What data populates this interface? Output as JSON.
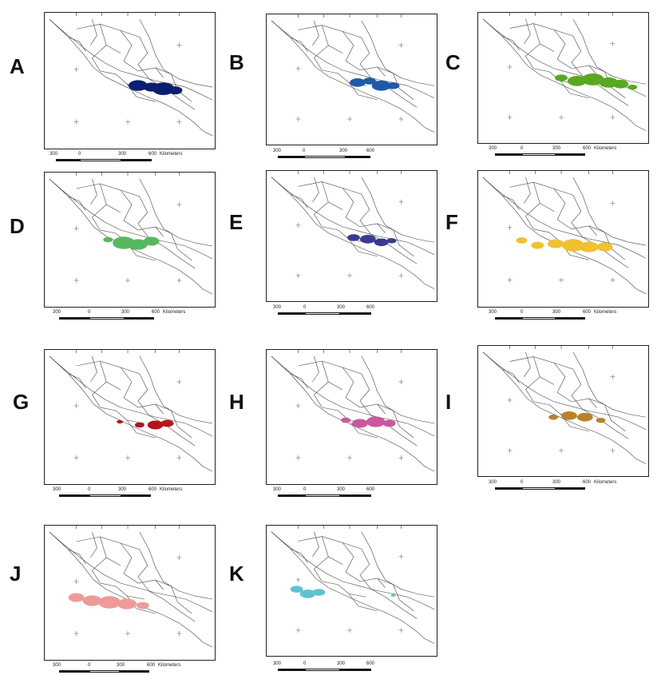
{
  "panels": [
    {
      "letter": "A",
      "color": "#0b1f6e",
      "scale": [
        "300",
        "0",
        "300",
        "600",
        "Kilometers"
      ]
    },
    {
      "letter": "B",
      "color": "#1f5aa8",
      "scale": [
        "300",
        "0",
        "300",
        "600"
      ]
    },
    {
      "letter": "C",
      "color": "#5aa820",
      "scale": [
        "300",
        "0",
        "300",
        "600",
        "Kilometers"
      ]
    },
    {
      "letter": "D",
      "color": "#57b860",
      "scale": [
        "300",
        "0",
        "300",
        "600",
        "Kilometers"
      ]
    },
    {
      "letter": "E",
      "color": "#3a3a90",
      "scale": [
        "300",
        "0",
        "300",
        "600"
      ]
    },
    {
      "letter": "F",
      "color": "#f2c030",
      "scale": [
        "300",
        "0",
        "300",
        "600",
        "Kilometers"
      ]
    },
    {
      "letter": "G",
      "color": "#b5141e",
      "scale": [
        "300",
        "0",
        "300",
        "600",
        "Kilometers"
      ]
    },
    {
      "letter": "H",
      "color": "#c9589c",
      "scale": [
        "300",
        "0",
        "300",
        "600"
      ]
    },
    {
      "letter": "I",
      "color": "#b9812a",
      "scale": [
        "300",
        "0",
        "300",
        "600",
        "Kilometers"
      ]
    },
    {
      "letter": "J",
      "color": "#ef9a9a",
      "scale": [
        "300",
        "0",
        "300",
        "600",
        "Kilometers"
      ]
    },
    {
      "letter": "K",
      "color": "#5ec3cf",
      "scale": [
        "300",
        "0",
        "300",
        "600"
      ]
    }
  ]
}
